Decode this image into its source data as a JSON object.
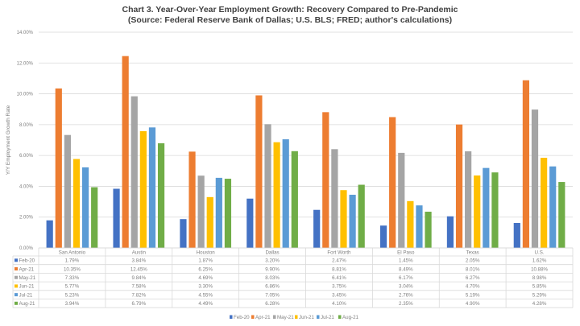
{
  "chart_data": {
    "type": "bar",
    "title": "Chart 3. Year-Over-Year Employment Growth: Recovery Compared to Pre-Pandemic",
    "subtitle": "(Source: Federal Reserve Bank of Dallas; U.S. BLS; FRED; author's calculations)",
    "xlabel": "",
    "ylabel": "Y/Y Employment Growth Rate",
    "ylim": [
      0,
      14
    ],
    "ytick_step": 2,
    "ytick_labels": [
      "0.00%",
      "2.00%",
      "4.00%",
      "6.00%",
      "8.00%",
      "10.00%",
      "12.00%",
      "14.00%"
    ],
    "grid": true,
    "legend_position": "bottom",
    "data_table": true,
    "categories": [
      "San Antonio",
      "Austin",
      "Houston",
      "Dallas",
      "Fort Worth",
      "El Paso",
      "Texas",
      "U.S."
    ],
    "series": [
      {
        "name": "Feb-20",
        "color": "#4472C4",
        "values": [
          1.79,
          3.84,
          1.87,
          3.2,
          2.47,
          1.45,
          2.05,
          1.62
        ],
        "labels": [
          "1.79%",
          "3.84%",
          "1.87%",
          "3.20%",
          "2.47%",
          "1.45%",
          "2.05%",
          "1.62%"
        ]
      },
      {
        "name": "Apr-21",
        "color": "#ED7D31",
        "values": [
          10.35,
          12.45,
          6.25,
          9.9,
          8.81,
          8.49,
          8.01,
          10.88
        ],
        "labels": [
          "10.35%",
          "12.45%",
          "6.25%",
          "9.90%",
          "8.81%",
          "8.49%",
          "8.01%",
          "10.88%"
        ]
      },
      {
        "name": "May-21",
        "color": "#A5A5A5",
        "values": [
          7.33,
          9.84,
          4.69,
          8.03,
          6.41,
          6.17,
          6.27,
          8.98
        ],
        "labels": [
          "7.33%",
          "9.84%",
          "4.69%",
          "8.03%",
          "6.41%",
          "6.17%",
          "6.27%",
          "8.98%"
        ]
      },
      {
        "name": "Jun-21",
        "color": "#FFC000",
        "values": [
          5.77,
          7.58,
          3.3,
          6.86,
          3.75,
          3.04,
          4.7,
          5.85
        ],
        "labels": [
          "5.77%",
          "7.58%",
          "3.30%",
          "6.86%",
          "3.75%",
          "3.04%",
          "4.70%",
          "5.85%"
        ]
      },
      {
        "name": "Jul-21",
        "color": "#5B9BD5",
        "values": [
          5.23,
          7.82,
          4.55,
          7.05,
          3.45,
          2.76,
          5.19,
          5.29
        ],
        "labels": [
          "5.23%",
          "7.82%",
          "4.55%",
          "7.05%",
          "3.45%",
          "2.76%",
          "5.19%",
          "5.29%"
        ]
      },
      {
        "name": "Aug-21",
        "color": "#70AD47",
        "values": [
          3.94,
          6.79,
          4.49,
          6.28,
          4.1,
          2.35,
          4.9,
          4.28
        ],
        "labels": [
          "3.94%",
          "6.79%",
          "4.49%",
          "6.28%",
          "4.10%",
          "2.35%",
          "4.90%",
          "4.28%"
        ]
      }
    ]
  }
}
